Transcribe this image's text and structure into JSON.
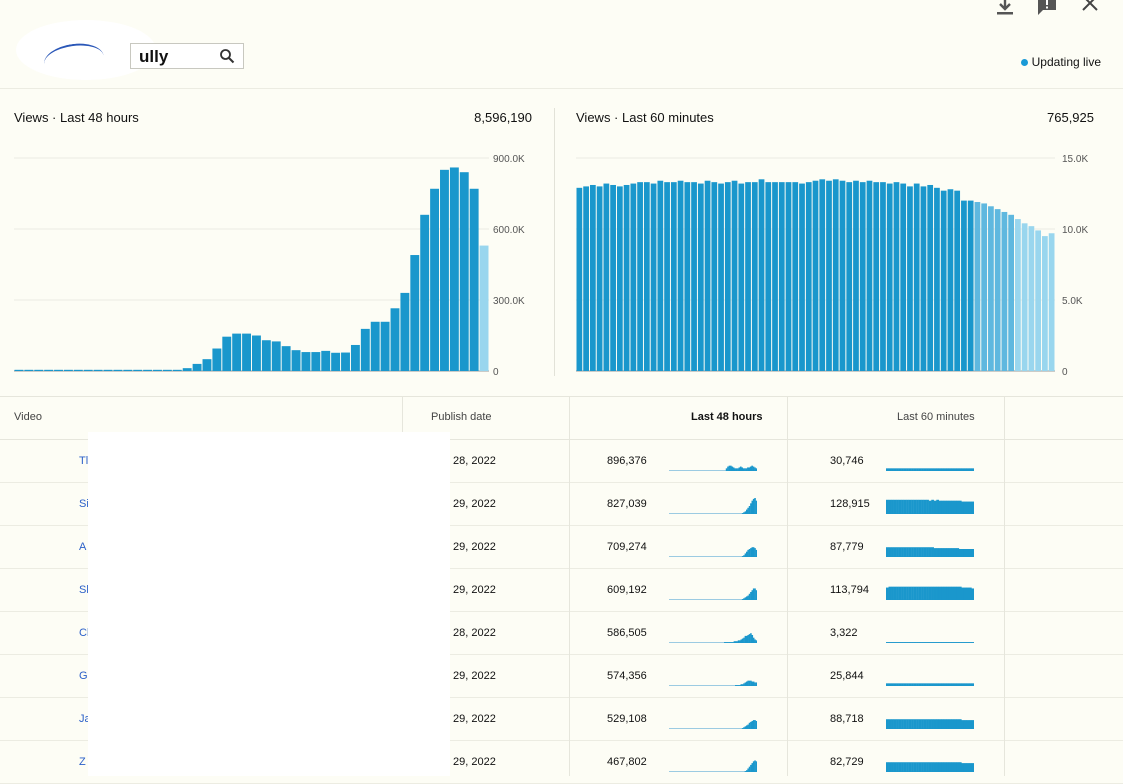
{
  "header": {
    "search_value": "ully",
    "search_icon": "search-icon",
    "icons": [
      "download-icon",
      "feedback-icon",
      "close-icon"
    ],
    "live_label": "Updating live",
    "live_color": "#1a9ad6"
  },
  "colors": {
    "bar": "#1a97cc",
    "bar_partial": "#99d6ee",
    "grid": "#ecece2"
  },
  "chart_data": [
    {
      "type": "bar",
      "title": "Views · Last 48 hours",
      "total": "8,596,190",
      "yticks": [
        "900.0K",
        "600.0K",
        "300.0K",
        "0"
      ],
      "ylim": [
        0,
        900000
      ],
      "values": [
        5000,
        5000,
        5000,
        5000,
        5000,
        5000,
        5000,
        5000,
        5000,
        5000,
        5000,
        5000,
        5000,
        5000,
        5000,
        5000,
        5000,
        12000,
        30000,
        50000,
        95000,
        145000,
        158000,
        158000,
        150000,
        130000,
        125000,
        105000,
        88000,
        80000,
        80000,
        85000,
        77000,
        78000,
        110000,
        178000,
        208000,
        208000,
        265000,
        330000,
        490000,
        660000,
        770000,
        850000,
        860000,
        840000,
        770000,
        530000
      ],
      "partial_last": true
    },
    {
      "type": "bar",
      "title": "Views · Last 60 minutes",
      "total": "765,925",
      "yticks": [
        "15.0K",
        "10.0K",
        "5.0K",
        "0"
      ],
      "ylim": [
        0,
        15000
      ],
      "values": [
        12900,
        13000,
        13100,
        13000,
        13200,
        13100,
        13000,
        13100,
        13200,
        13300,
        13300,
        13200,
        13400,
        13300,
        13300,
        13400,
        13300,
        13300,
        13200,
        13400,
        13300,
        13200,
        13300,
        13400,
        13200,
        13300,
        13300,
        13500,
        13300,
        13300,
        13300,
        13300,
        13300,
        13200,
        13300,
        13400,
        13500,
        13400,
        13500,
        13400,
        13300,
        13400,
        13300,
        13400,
        13300,
        13300,
        13200,
        13300,
        13200,
        13000,
        13200,
        13000,
        13100,
        12900,
        12700,
        12800,
        12700,
        12000,
        12000,
        11900,
        11800,
        11600,
        11400,
        11200,
        11000,
        10700,
        10400,
        10200,
        9900,
        9500,
        9700
      ],
      "partial_from": 59,
      "partial_end_value": 7900
    }
  ],
  "table": {
    "headers": {
      "video": "Video",
      "publish": "Publish date",
      "h48": "Last 48 hours",
      "m60": "Last 60 minutes"
    },
    "rows": [
      {
        "title": "Tl",
        "date": "28, 2022",
        "h48": "896,376",
        "m60": "30,746",
        "spark48": [
          0,
          0,
          0,
          0,
          0,
          0,
          0,
          0,
          0,
          0,
          0,
          0,
          0,
          0,
          0,
          0,
          0,
          0,
          0,
          0,
          0,
          0,
          0,
          0,
          0,
          0,
          0,
          0,
          0,
          0,
          0,
          0,
          0,
          0,
          0,
          0,
          0,
          0,
          0,
          0,
          3,
          5,
          6,
          6,
          5,
          4,
          3,
          3,
          3,
          4,
          5,
          4,
          3,
          3,
          3,
          4,
          4,
          5,
          6,
          5,
          4,
          3
        ],
        "spark60": [
          3,
          3,
          3,
          3,
          3,
          3,
          3,
          3,
          3,
          3,
          3,
          3,
          3,
          3,
          3,
          3,
          3,
          3,
          3,
          3,
          3,
          3,
          3,
          3,
          3,
          3,
          3,
          3,
          3,
          3,
          3,
          3,
          3,
          3,
          3
        ]
      },
      {
        "title": "Si",
        "date": "29, 2022",
        "h48": "827,039",
        "m60": "128,915",
        "spark48": [
          0,
          0,
          0,
          0,
          0,
          0,
          0,
          0,
          0,
          0,
          0,
          0,
          0,
          0,
          0,
          0,
          0,
          0,
          0,
          0,
          0,
          0,
          0,
          0,
          0,
          0,
          0,
          0,
          0,
          0,
          0,
          0,
          0,
          0,
          0,
          0,
          0,
          0,
          0,
          0,
          0,
          0,
          0,
          0,
          0,
          0,
          0,
          0,
          0,
          0,
          0,
          0,
          0,
          1,
          2,
          3,
          5,
          7,
          9,
          12,
          15,
          17,
          18,
          15
        ],
        "spark60": [
          16,
          16,
          16,
          16,
          16,
          16,
          16,
          16,
          16,
          16,
          16,
          16,
          16,
          16,
          16,
          16,
          16,
          15,
          16,
          15,
          16,
          15,
          15,
          15,
          15,
          15,
          15,
          15,
          15,
          15,
          14,
          14,
          14,
          14,
          14
        ]
      },
      {
        "title": "A",
        "date": "29, 2022",
        "h48": "709,274",
        "m60": "87,779",
        "spark48": [
          0,
          0,
          0,
          0,
          0,
          0,
          0,
          0,
          0,
          0,
          0,
          0,
          0,
          0,
          0,
          0,
          0,
          0,
          0,
          0,
          0,
          0,
          0,
          0,
          0,
          0,
          0,
          0,
          0,
          0,
          0,
          0,
          0,
          0,
          0,
          0,
          0,
          0,
          0,
          0,
          0,
          0,
          0,
          0,
          0,
          0,
          0,
          0,
          0,
          0,
          0,
          0,
          0,
          1,
          2,
          4,
          6,
          8,
          9,
          10,
          11,
          11,
          10,
          8
        ],
        "spark60": [
          11,
          11,
          11,
          11,
          11,
          11,
          11,
          11,
          11,
          11,
          11,
          11,
          11,
          11,
          11,
          11,
          11,
          11,
          11,
          10,
          10,
          10,
          10,
          10,
          10,
          10,
          10,
          10,
          10,
          9,
          9,
          9,
          9,
          9,
          9
        ]
      },
      {
        "title": "Sl",
        "date": "29, 2022",
        "h48": "609,192",
        "m60": "113,794",
        "spark48": [
          0,
          0,
          0,
          0,
          0,
          0,
          0,
          0,
          0,
          0,
          0,
          0,
          0,
          0,
          0,
          0,
          0,
          0,
          0,
          0,
          0,
          0,
          0,
          0,
          0,
          0,
          0,
          0,
          0,
          0,
          0,
          0,
          0,
          0,
          0,
          0,
          0,
          0,
          0,
          0,
          0,
          0,
          0,
          0,
          0,
          0,
          0,
          0,
          0,
          0,
          0,
          0,
          0,
          1,
          2,
          3,
          4,
          5,
          7,
          9,
          11,
          13,
          13,
          11
        ],
        "spark60": [
          14,
          15,
          15,
          15,
          15,
          15,
          15,
          15,
          15,
          15,
          15,
          15,
          15,
          15,
          15,
          15,
          15,
          15,
          15,
          15,
          15,
          15,
          15,
          15,
          15,
          15,
          15,
          15,
          15,
          15,
          14,
          14,
          14,
          14,
          13
        ]
      },
      {
        "title": "Cl",
        "date": "28, 2022",
        "h48": "586,505",
        "m60": "3,322",
        "spark48": [
          0,
          0,
          0,
          0,
          0,
          0,
          0,
          0,
          0,
          0,
          0,
          0,
          0,
          0,
          0,
          0,
          0,
          0,
          0,
          0,
          0,
          0,
          0,
          0,
          0,
          0,
          0,
          0,
          0,
          0,
          0,
          0,
          0,
          0,
          0,
          0,
          0,
          0,
          0,
          0,
          1,
          1,
          1,
          1,
          1,
          1,
          1,
          2,
          2,
          2,
          3,
          3,
          4,
          5,
          6,
          8,
          8,
          9,
          10,
          11,
          9,
          6,
          4,
          3
        ],
        "spark60": [
          1,
          1,
          1,
          1,
          1,
          1,
          1,
          1,
          1,
          1,
          1,
          1,
          1,
          1,
          1,
          1,
          1,
          1,
          1,
          1,
          1,
          1,
          1,
          1,
          1,
          1,
          1,
          1,
          1,
          1,
          1,
          1,
          1,
          1,
          1
        ]
      },
      {
        "title": "G",
        "date": "29, 2022",
        "h48": "574,356",
        "m60": "25,844",
        "spark48": [
          0,
          0,
          0,
          0,
          0,
          0,
          0,
          0,
          0,
          0,
          0,
          0,
          0,
          0,
          0,
          0,
          0,
          0,
          0,
          0,
          0,
          0,
          0,
          0,
          0,
          0,
          0,
          0,
          0,
          0,
          0,
          0,
          0,
          0,
          0,
          0,
          0,
          0,
          0,
          0,
          0,
          0,
          0,
          0,
          0,
          0,
          0,
          0,
          1,
          1,
          1,
          1,
          2,
          2,
          3,
          4,
          5,
          6,
          6,
          6,
          5,
          5,
          4,
          4
        ],
        "spark60": [
          3,
          3,
          3,
          3,
          3,
          3,
          3,
          3,
          3,
          3,
          3,
          3,
          3,
          3,
          3,
          3,
          3,
          3,
          3,
          3,
          3,
          3,
          3,
          3,
          3,
          3,
          3,
          3,
          3,
          3,
          3,
          3,
          3,
          3,
          3
        ]
      },
      {
        "title": "Ja",
        "date": "29, 2022",
        "h48": "529,108",
        "m60": "88,718",
        "spark48": [
          0,
          0,
          0,
          0,
          0,
          0,
          0,
          0,
          0,
          0,
          0,
          0,
          0,
          0,
          0,
          0,
          0,
          0,
          0,
          0,
          0,
          0,
          0,
          0,
          0,
          0,
          0,
          0,
          0,
          0,
          0,
          0,
          0,
          0,
          0,
          0,
          0,
          0,
          0,
          0,
          0,
          0,
          0,
          0,
          0,
          0,
          0,
          0,
          0,
          0,
          0,
          0,
          0,
          1,
          2,
          3,
          4,
          5,
          7,
          8,
          9,
          10,
          10,
          9
        ],
        "spark60": [
          11,
          11,
          11,
          11,
          11,
          11,
          11,
          11,
          11,
          11,
          11,
          11,
          11,
          11,
          11,
          11,
          11,
          11,
          11,
          11,
          11,
          11,
          11,
          11,
          11,
          11,
          11,
          11,
          11,
          11,
          10,
          10,
          10,
          10,
          10
        ]
      },
      {
        "title": "Z",
        "date": "29, 2022",
        "h48": "467,802",
        "m60": "82,729",
        "spark48": [
          0,
          0,
          0,
          0,
          0,
          0,
          0,
          0,
          0,
          0,
          0,
          0,
          0,
          0,
          0,
          0,
          0,
          0,
          0,
          0,
          0,
          0,
          0,
          0,
          0,
          0,
          0,
          0,
          0,
          0,
          0,
          0,
          0,
          0,
          0,
          0,
          0,
          0,
          0,
          0,
          0,
          0,
          0,
          0,
          0,
          0,
          0,
          0,
          0,
          0,
          0,
          0,
          0,
          0,
          0,
          1,
          2,
          4,
          6,
          8,
          10,
          12,
          13,
          12
        ],
        "spark60": [
          11,
          11,
          11,
          11,
          11,
          11,
          11,
          11,
          11,
          11,
          11,
          11,
          11,
          11,
          11,
          11,
          11,
          11,
          11,
          11,
          11,
          11,
          11,
          11,
          11,
          11,
          11,
          11,
          11,
          11,
          10,
          10,
          10,
          10,
          10
        ]
      }
    ]
  }
}
